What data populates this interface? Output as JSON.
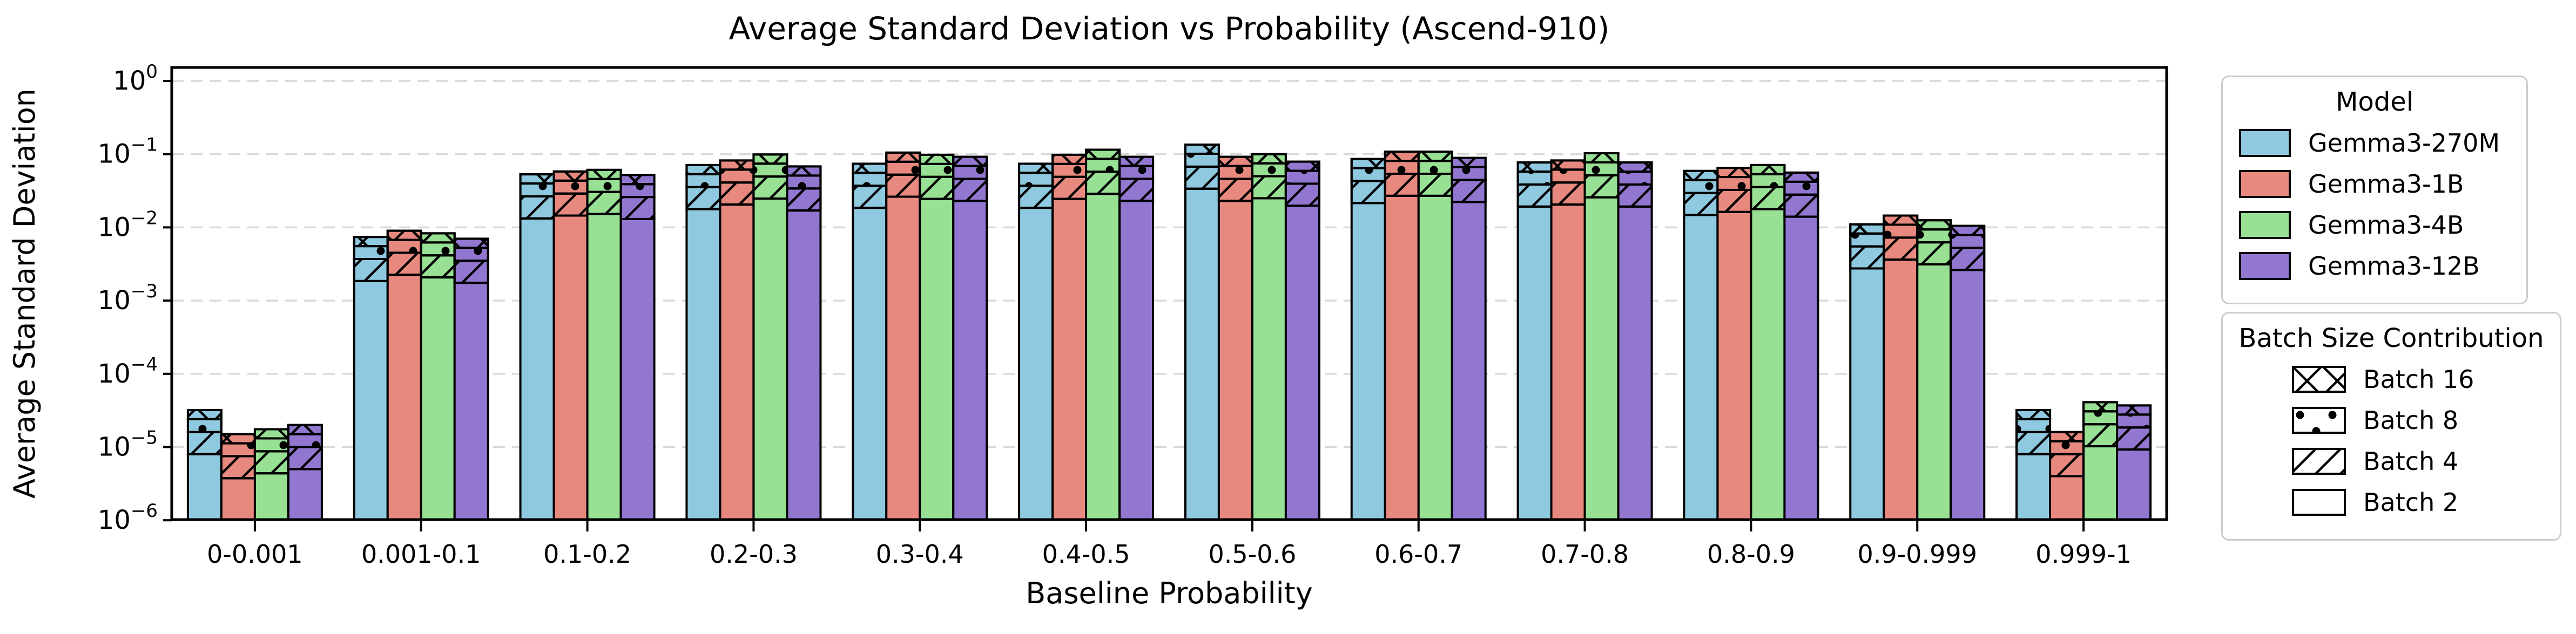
{
  "title": "Average Standard Deviation vs Probability (Ascend-910)",
  "axes": {
    "xlabel": "Baseline Probability",
    "ylabel": "Average Standard Deviation",
    "ytick_exponents": [
      0,
      -1,
      -2,
      -3,
      -4,
      -5,
      -6
    ],
    "grid_color": "#d9d9d9",
    "spine_color": "#000000"
  },
  "legend_model": {
    "title": "Model",
    "entries": [
      {
        "label": "Gemma3-270M",
        "color": "#8FC9E0"
      },
      {
        "label": "Gemma3-1B",
        "color": "#E8897F"
      },
      {
        "label": "Gemma3-4B",
        "color": "#97E094"
      },
      {
        "label": "Gemma3-12B",
        "color": "#9277D1"
      }
    ]
  },
  "legend_batch": {
    "title": "Batch Size Contribution",
    "entries": [
      {
        "label": "Batch 16",
        "hatch": "cross"
      },
      {
        "label": "Batch 8",
        "hatch": "dots"
      },
      {
        "label": "Batch 4",
        "hatch": "diag"
      },
      {
        "label": "Batch 2",
        "hatch": "none"
      }
    ]
  },
  "chart_data": {
    "type": "bar",
    "yscale": "log",
    "ylim": [
      1e-06,
      1.5
    ],
    "grid": true,
    "legend_position": "right",
    "xlabel": "Baseline Probability",
    "ylabel": "Average Standard Deviation",
    "title": "Average Standard Deviation vs Probability (Ascend-910)",
    "categories": [
      "0-0.001",
      "0.001-0.1",
      "0.1-0.2",
      "0.2-0.3",
      "0.3-0.4",
      "0.4-0.5",
      "0.5-0.6",
      "0.6-0.7",
      "0.7-0.8",
      "0.8-0.9",
      "0.9-0.999",
      "0.999-1"
    ],
    "series": [
      {
        "name": "Gemma3-270M",
        "color": "#8FC9E0",
        "values": [
          3.2e-05,
          0.0074,
          0.053,
          0.071,
          0.074,
          0.074,
          0.135,
          0.086,
          0.077,
          0.059,
          0.011,
          3.2e-05
        ]
      },
      {
        "name": "Gemma3-1B",
        "color": "#E8897F",
        "values": [
          1.5e-05,
          0.009,
          0.058,
          0.082,
          0.105,
          0.098,
          0.092,
          0.108,
          0.082,
          0.065,
          0.0145,
          1.6e-05
        ]
      },
      {
        "name": "Gemma3-4B",
        "color": "#97E094",
        "values": [
          1.75e-05,
          0.0083,
          0.061,
          0.099,
          0.098,
          0.115,
          0.1,
          0.108,
          0.103,
          0.071,
          0.0125,
          4.1e-05
        ]
      },
      {
        "name": "Gemma3-12B",
        "color": "#9277D1",
        "values": [
          2e-05,
          0.007,
          0.052,
          0.068,
          0.092,
          0.092,
          0.079,
          0.089,
          0.077,
          0.056,
          0.0105,
          3.7e-05
        ]
      }
    ],
    "stack": {
      "labels_bottom_to_top": [
        "Batch 2",
        "Batch 4",
        "Batch 8",
        "Batch 16"
      ],
      "hatches_bottom_to_top": [
        "none",
        "diag",
        "dots",
        "cross"
      ],
      "fractions": [
        0.25,
        0.25,
        0.25,
        0.25
      ]
    }
  }
}
